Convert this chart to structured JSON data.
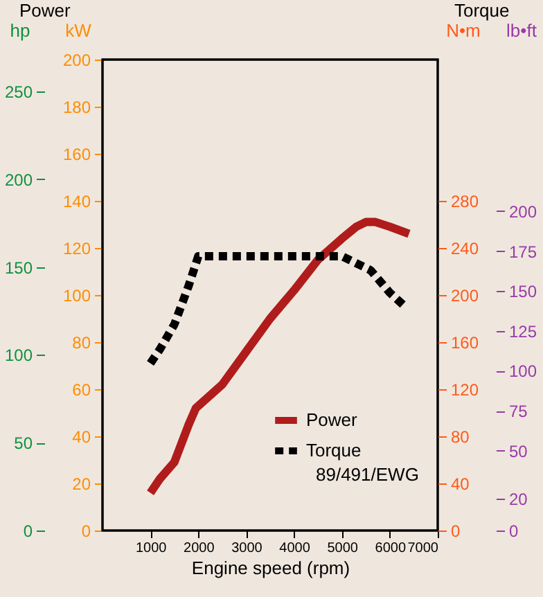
{
  "chart_data": [
    {
      "type": "line",
      "annotations": [
        "Power"
      ],
      "xlabel": "Engine speed (rpm)",
      "ylabel": "kW",
      "y2label": "hp",
      "xlim": [
        0,
        7000
      ],
      "xticks": [
        1000,
        2000,
        3000,
        4000,
        5000,
        6000,
        7000
      ],
      "ylim": [
        0,
        200
      ],
      "yticks": [
        0,
        20,
        40,
        60,
        80,
        100,
        120,
        140,
        160,
        180,
        200
      ],
      "y2lim": [
        0,
        268.2
      ],
      "y2ticks": [
        0,
        50,
        100,
        150,
        200,
        250
      ],
      "legend": "bottom right",
      "series": [
        {
          "name": "Power",
          "color": "#b01c1c",
          "line_style": "solid",
          "x": [
            1000,
            1200,
            1500,
            1800,
            1950,
            2500,
            3000,
            3500,
            4000,
            4500,
            5000,
            5300,
            5500,
            5700,
            6000,
            6400
          ],
          "values": [
            16,
            22,
            29,
            45,
            52,
            62,
            76,
            90,
            102,
            115,
            124,
            129,
            131,
            131,
            129,
            126
          ]
        }
      ]
    },
    {
      "type": "line",
      "annotations": [
        "Torque",
        "89/491/EWG"
      ],
      "ylabel": "N•m",
      "y2label": "lb•ft",
      "xlim": [
        0,
        7000
      ],
      "tick_labels": "y",
      "ylim": [
        0,
        400
      ],
      "yticks": [
        0,
        40,
        80,
        120,
        160,
        200,
        240,
        280
      ],
      "y2lim": [
        0,
        295
      ],
      "y2ticks": [
        0,
        20,
        50,
        75,
        100,
        125,
        150,
        175,
        200
      ],
      "legend": "bottom right",
      "series": [
        {
          "name": "Torque",
          "color": "#000000",
          "line_style": "dashed",
          "x": [
            1000,
            1200,
            1500,
            1800,
            2000,
            3000,
            4000,
            5000,
            5300,
            5600,
            6000,
            6350
          ],
          "values": [
            142,
            154,
            175,
            208,
            233,
            233,
            233,
            233,
            227,
            221,
            202,
            189
          ]
        }
      ]
    }
  ]
}
